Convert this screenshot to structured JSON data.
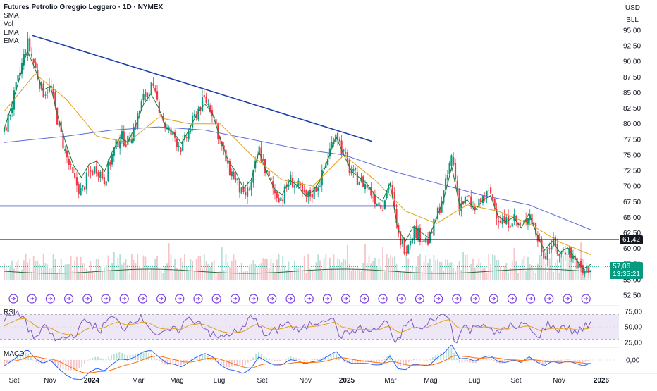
{
  "header": {
    "symbol_line": "Futures Petrolio Greggio Leggero · 1D · NYMEX",
    "indicators": [
      "SMA",
      "Vol",
      "EMA",
      "EMA"
    ],
    "currency": "USD",
    "unit": "BLL"
  },
  "panes": {
    "rsi_label": "RSI",
    "macd_label": "MACD"
  },
  "tags": {
    "level_line": "61,42",
    "last_price": "57,06",
    "countdown": "13:35:21"
  },
  "colors": {
    "up": "#089981",
    "down": "#f23645",
    "trendline": "#1e3fa8",
    "horizontal": "#000000",
    "sma": "#5b6bd6",
    "ema_fast": "#1b7a3b",
    "ema_slow": "#e3a21a",
    "rsi": "#7e57c2",
    "rsi_ma": "#e3a21a"
  },
  "chart_data": [
    {
      "type": "line",
      "subtype": "candlestick",
      "x_ticks": [
        "Set",
        "Nov",
        "2024",
        "Mar",
        "Mag",
        "Lug",
        "Set",
        "Nov",
        "2025",
        "Mar",
        "Mag",
        "Lug",
        "Set",
        "Nov",
        "2026"
      ],
      "x_ticks_bold": [
        "2024",
        "2025",
        "2026"
      ],
      "y_ticks": [
        "95,00",
        "92,50",
        "90,00",
        "87,50",
        "85,00",
        "82,50",
        "80,00",
        "77,50",
        "75,00",
        "72,50",
        "70,00",
        "67,50",
        "65,00",
        "62,50",
        "60,00",
        "57,50",
        "55,00",
        "52,50"
      ],
      "ylim": [
        51.5,
        96.5
      ],
      "close_path": [
        {
          "t": 0,
          "v": 78.5
        },
        {
          "t": 0.5,
          "v": 83
        },
        {
          "t": 1,
          "v": 88
        },
        {
          "t": 1.5,
          "v": 93
        },
        {
          "t": 2,
          "v": 89
        },
        {
          "t": 2.5,
          "v": 85
        },
        {
          "t": 3,
          "v": 86
        },
        {
          "t": 3.5,
          "v": 80
        },
        {
          "t": 4,
          "v": 75
        },
        {
          "t": 4.5,
          "v": 71
        },
        {
          "t": 5,
          "v": 69
        },
        {
          "t": 5.5,
          "v": 72
        },
        {
          "t": 6,
          "v": 73
        },
        {
          "t": 6.5,
          "v": 71
        },
        {
          "t": 7,
          "v": 75
        },
        {
          "t": 7.5,
          "v": 78
        },
        {
          "t": 8,
          "v": 77
        },
        {
          "t": 8.5,
          "v": 80
        },
        {
          "t": 9,
          "v": 84
        },
        {
          "t": 9.5,
          "v": 86
        },
        {
          "t": 10,
          "v": 83
        },
        {
          "t": 10.5,
          "v": 79
        },
        {
          "t": 11,
          "v": 78
        },
        {
          "t": 11.5,
          "v": 76
        },
        {
          "t": 12,
          "v": 79
        },
        {
          "t": 12.5,
          "v": 82
        },
        {
          "t": 13,
          "v": 84
        },
        {
          "t": 13.5,
          "v": 82
        },
        {
          "t": 14,
          "v": 77
        },
        {
          "t": 14.5,
          "v": 73
        },
        {
          "t": 15,
          "v": 71
        },
        {
          "t": 15.5,
          "v": 68
        },
        {
          "t": 16,
          "v": 70
        },
        {
          "t": 16.5,
          "v": 76
        },
        {
          "t": 17,
          "v": 72
        },
        {
          "t": 17.5,
          "v": 69
        },
        {
          "t": 18,
          "v": 68
        },
        {
          "t": 18.5,
          "v": 71
        },
        {
          "t": 19,
          "v": 70
        },
        {
          "t": 19.5,
          "v": 68
        },
        {
          "t": 20,
          "v": 69
        },
        {
          "t": 20.5,
          "v": 71
        },
        {
          "t": 21,
          "v": 75
        },
        {
          "t": 21.5,
          "v": 79
        },
        {
          "t": 22,
          "v": 75
        },
        {
          "t": 22.5,
          "v": 72
        },
        {
          "t": 23,
          "v": 71
        },
        {
          "t": 23.5,
          "v": 70
        },
        {
          "t": 24,
          "v": 68
        },
        {
          "t": 24.5,
          "v": 67
        },
        {
          "t": 25,
          "v": 71
        },
        {
          "t": 25.5,
          "v": 62
        },
        {
          "t": 26,
          "v": 60
        },
        {
          "t": 26.5,
          "v": 63
        },
        {
          "t": 27,
          "v": 62
        },
        {
          "t": 27.5,
          "v": 61
        },
        {
          "t": 28,
          "v": 65
        },
        {
          "t": 28.5,
          "v": 69
        },
        {
          "t": 29,
          "v": 75
        },
        {
          "t": 29.5,
          "v": 67
        },
        {
          "t": 30,
          "v": 68
        },
        {
          "t": 30.5,
          "v": 66
        },
        {
          "t": 31,
          "v": 68
        },
        {
          "t": 31.5,
          "v": 69
        },
        {
          "t": 32,
          "v": 65
        },
        {
          "t": 32.5,
          "v": 64
        },
        {
          "t": 33,
          "v": 65
        },
        {
          "t": 33.5,
          "v": 63
        },
        {
          "t": 34,
          "v": 66
        },
        {
          "t": 34.5,
          "v": 62
        },
        {
          "t": 35,
          "v": 59
        },
        {
          "t": 35.5,
          "v": 61
        },
        {
          "t": 36,
          "v": 59
        },
        {
          "t": 36.5,
          "v": 60
        },
        {
          "t": 37,
          "v": 58
        },
        {
          "t": 37.5,
          "v": 56
        },
        {
          "t": 38,
          "v": 57.06
        }
      ],
      "sma_path": [
        {
          "t": 0,
          "v": 77
        },
        {
          "t": 2,
          "v": 77.5
        },
        {
          "t": 4,
          "v": 78
        },
        {
          "t": 7,
          "v": 79
        },
        {
          "t": 10,
          "v": 79.5
        },
        {
          "t": 13,
          "v": 79
        },
        {
          "t": 16,
          "v": 77.5
        },
        {
          "t": 19,
          "v": 76
        },
        {
          "t": 22,
          "v": 75
        },
        {
          "t": 25,
          "v": 72.5
        },
        {
          "t": 28,
          "v": 70.5
        },
        {
          "t": 31,
          "v": 68.5
        },
        {
          "t": 34,
          "v": 67
        },
        {
          "t": 36,
          "v": 65
        },
        {
          "t": 38,
          "v": 63
        }
      ],
      "ema_slow_path": [
        {
          "t": 0,
          "v": 82
        },
        {
          "t": 2,
          "v": 88
        },
        {
          "t": 4,
          "v": 84
        },
        {
          "t": 6,
          "v": 78
        },
        {
          "t": 8,
          "v": 77
        },
        {
          "t": 10,
          "v": 81
        },
        {
          "t": 12,
          "v": 80
        },
        {
          "t": 14,
          "v": 80
        },
        {
          "t": 16,
          "v": 75
        },
        {
          "t": 18,
          "v": 71
        },
        {
          "t": 20,
          "v": 70
        },
        {
          "t": 22,
          "v": 75
        },
        {
          "t": 24,
          "v": 71
        },
        {
          "t": 26,
          "v": 66
        },
        {
          "t": 28,
          "v": 64
        },
        {
          "t": 30,
          "v": 67
        },
        {
          "t": 32,
          "v": 66
        },
        {
          "t": 34,
          "v": 64
        },
        {
          "t": 36,
          "v": 61
        },
        {
          "t": 38,
          "v": 59
        }
      ],
      "trendline": [
        {
          "t": 1.8,
          "v": 94.2
        },
        {
          "t": 23.8,
          "v": 77.2
        }
      ],
      "horizontal_support": {
        "t0": 0,
        "t1": 25.5,
        "v": 66.8
      },
      "level_line": 61.42,
      "last_price": 57.06
    },
    {
      "type": "bar",
      "subtype": "volume",
      "note_ma": true
    },
    {
      "type": "line",
      "subtype": "rsi",
      "y_ticks": [
        "75,00",
        "50,00",
        "25,00"
      ],
      "ylim": [
        18,
        82
      ],
      "bands": [
        70,
        30
      ]
    },
    {
      "type": "line",
      "subtype": "macd",
      "y_ticks": [
        "0,00"
      ],
      "ylim": [
        -4,
        4
      ]
    }
  ]
}
